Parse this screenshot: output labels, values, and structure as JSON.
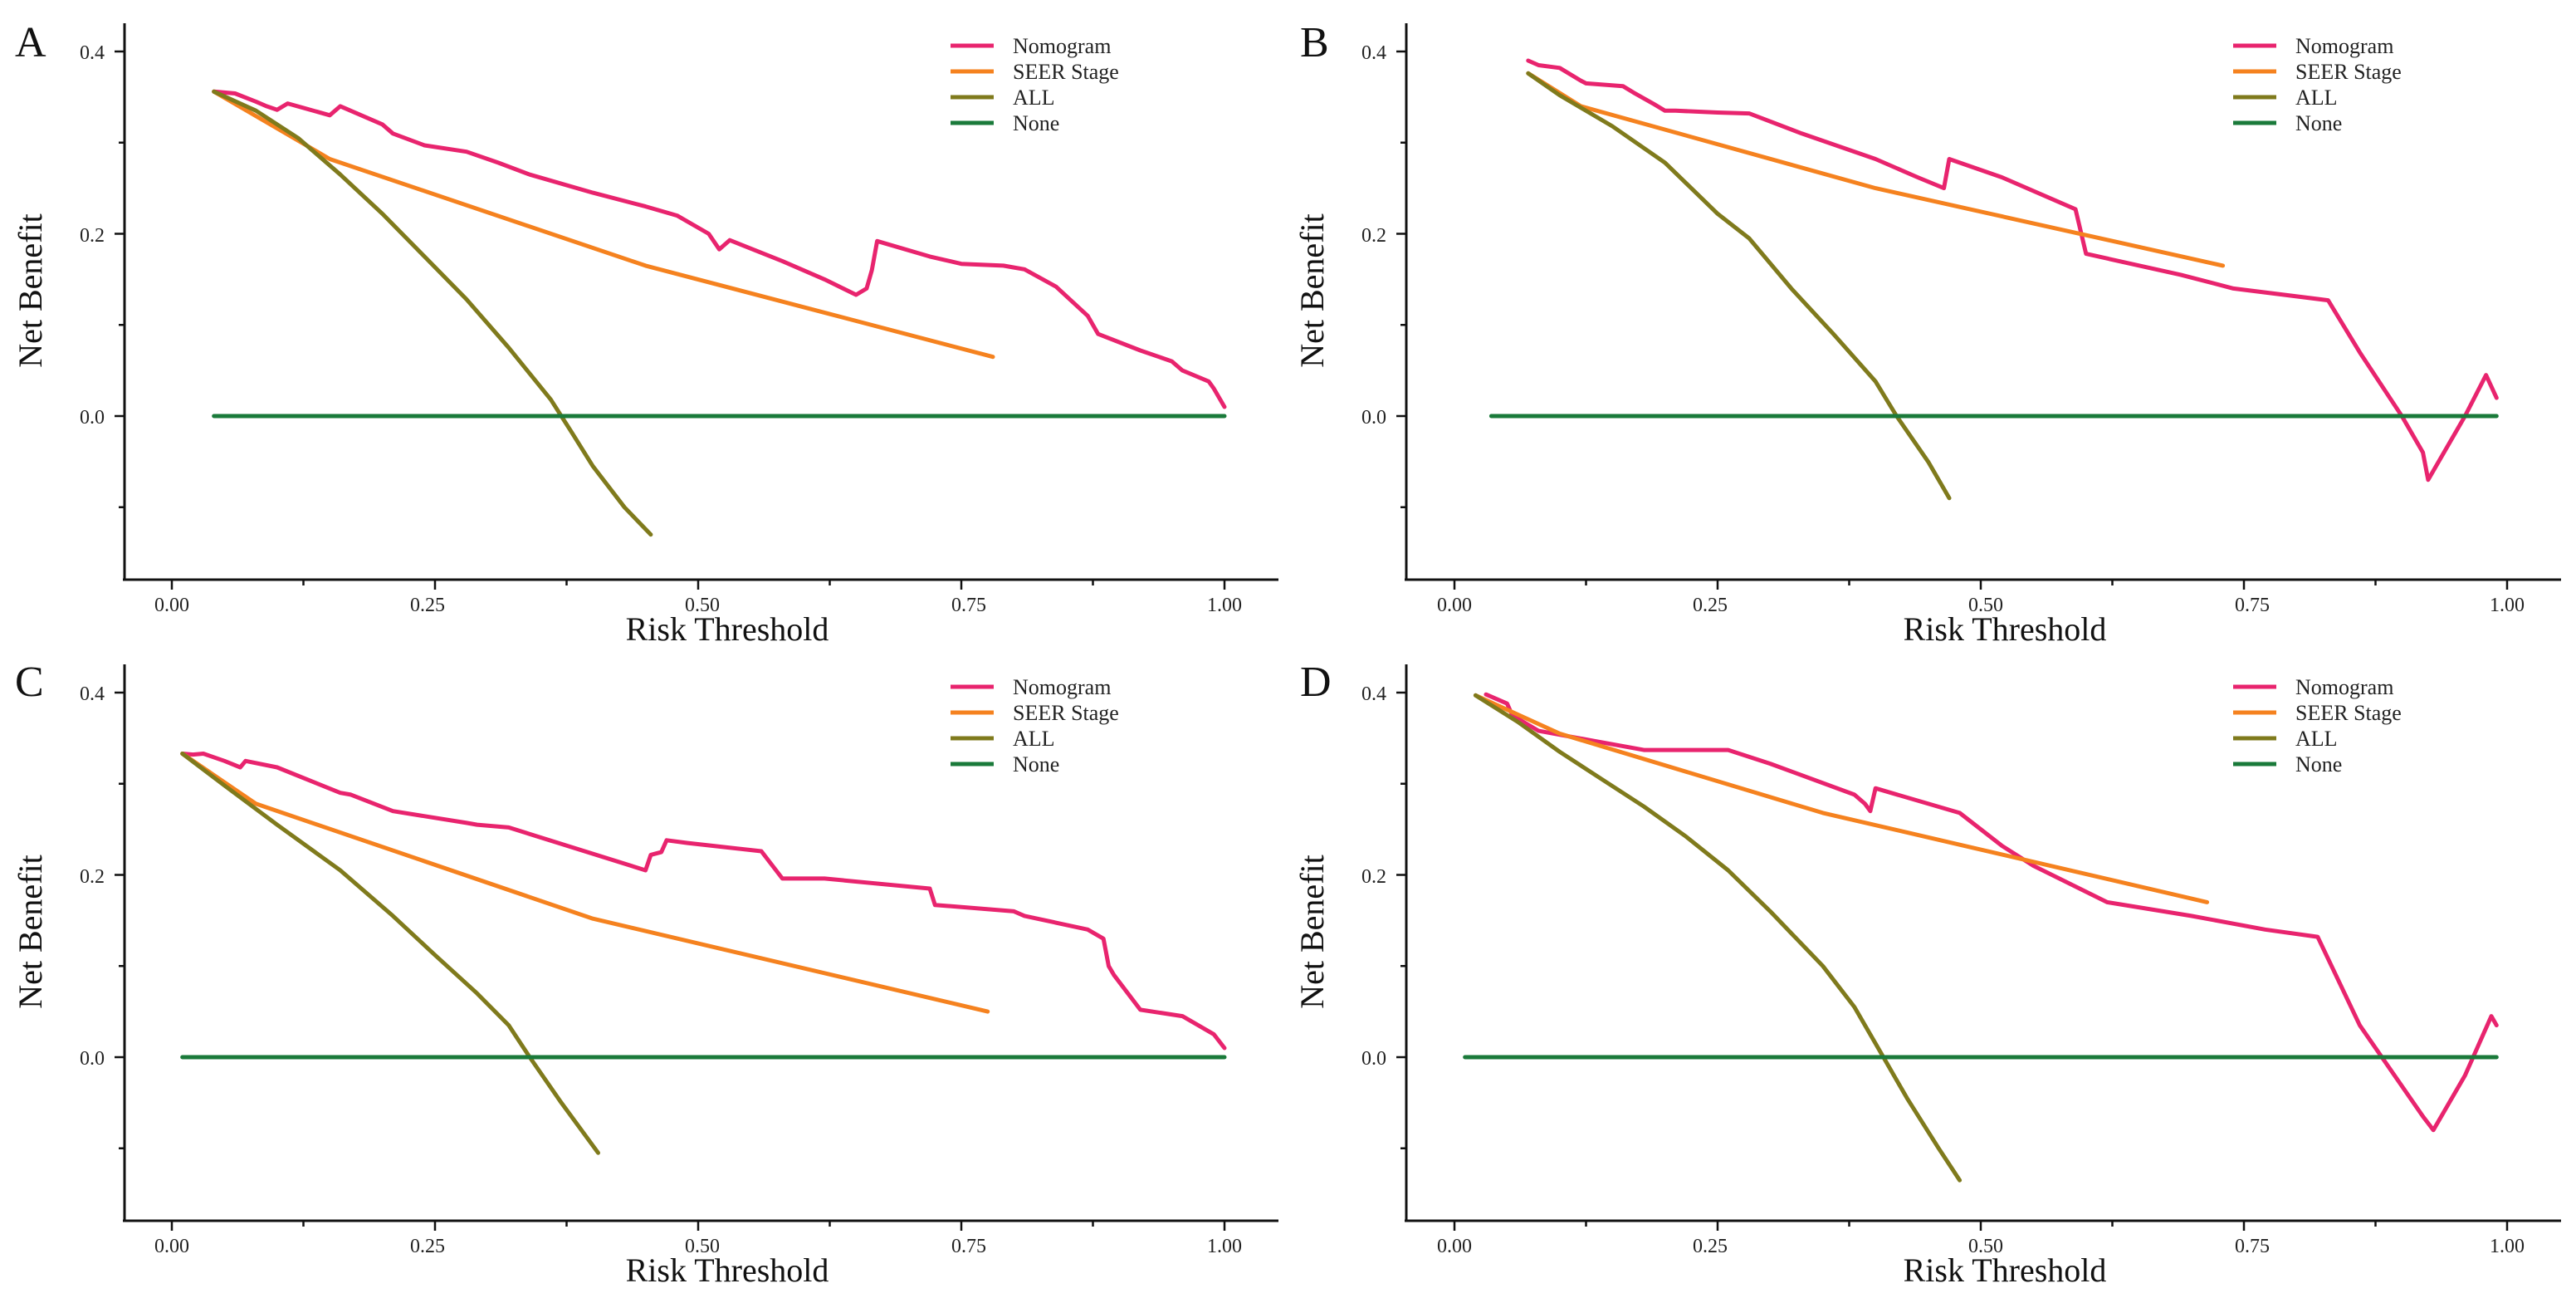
{
  "chart_data": [
    {
      "panel": "A",
      "type": "line",
      "xlabel": "Risk Threshold",
      "ylabel": "Net Benefit",
      "xlim": [
        -0.09,
        1.05
      ],
      "ylim": [
        -0.18,
        0.43
      ],
      "xticks": [
        "0.00",
        "0.25",
        "0.50",
        "0.75",
        "1.00"
      ],
      "yticks": [
        "0.0",
        "0.2",
        "0.4"
      ],
      "legend": [
        "Nomogram",
        "SEER Stage",
        "ALL",
        "None"
      ],
      "series": [
        {
          "name": "Nomogram",
          "color": "#e8246e",
          "x": [
            0.04,
            0.06,
            0.08,
            0.09,
            0.1,
            0.11,
            0.15,
            0.16,
            0.2,
            0.21,
            0.24,
            0.28,
            0.31,
            0.34,
            0.4,
            0.45,
            0.48,
            0.51,
            0.52,
            0.53,
            0.58,
            0.62,
            0.65,
            0.66,
            0.665,
            0.67,
            0.72,
            0.75,
            0.79,
            0.8,
            0.81,
            0.84,
            0.87,
            0.88,
            0.92,
            0.95,
            0.96,
            0.985,
            0.99,
            1.0
          ],
          "y": [
            0.356,
            0.354,
            0.345,
            0.34,
            0.336,
            0.343,
            0.33,
            0.34,
            0.32,
            0.31,
            0.297,
            0.29,
            0.278,
            0.265,
            0.245,
            0.23,
            0.22,
            0.2,
            0.183,
            0.193,
            0.17,
            0.15,
            0.133,
            0.14,
            0.16,
            0.192,
            0.175,
            0.167,
            0.165,
            0.163,
            0.161,
            0.142,
            0.11,
            0.09,
            0.072,
            0.06,
            0.05,
            0.038,
            0.03,
            0.01
          ]
        },
        {
          "name": "SEER Stage",
          "color": "#f5821f",
          "x": [
            0.04,
            0.15,
            0.45,
            0.78
          ],
          "y": [
            0.356,
            0.282,
            0.165,
            0.065
          ]
        },
        {
          "name": "ALL",
          "color": "#7f7a1c",
          "x": [
            0.04,
            0.08,
            0.12,
            0.16,
            0.2,
            0.24,
            0.28,
            0.32,
            0.36,
            0.38,
            0.4,
            0.43,
            0.455
          ],
          "y": [
            0.356,
            0.335,
            0.305,
            0.265,
            0.222,
            0.175,
            0.128,
            0.075,
            0.018,
            -0.018,
            -0.055,
            -0.1,
            -0.13
          ]
        },
        {
          "name": "None",
          "color": "#1a7a3a",
          "x": [
            0.04,
            1.0
          ],
          "y": [
            0.0,
            0.0
          ]
        }
      ]
    },
    {
      "panel": "B",
      "type": "line",
      "xlabel": "Risk Threshold",
      "ylabel": "Net Benefit",
      "xlim": [
        -0.05,
        1.05
      ],
      "ylim": [
        -0.18,
        0.43
      ],
      "xticks": [
        "0.00",
        "0.25",
        "0.50",
        "0.75",
        "1.00"
      ],
      "yticks": [
        "0.0",
        "0.2",
        "0.4"
      ],
      "legend": [
        "Nomogram",
        "SEER Stage",
        "ALL",
        "None"
      ],
      "series": [
        {
          "name": "Nomogram",
          "color": "#e8246e",
          "x": [
            0.07,
            0.08,
            0.1,
            0.12,
            0.125,
            0.16,
            0.17,
            0.19,
            0.2,
            0.21,
            0.25,
            0.28,
            0.33,
            0.4,
            0.44,
            0.465,
            0.47,
            0.52,
            0.59,
            0.6,
            0.69,
            0.74,
            0.83,
            0.86,
            0.9,
            0.92,
            0.925,
            0.96,
            0.98,
            0.99
          ],
          "y": [
            0.39,
            0.385,
            0.382,
            0.368,
            0.365,
            0.362,
            0.355,
            0.342,
            0.335,
            0.335,
            0.333,
            0.332,
            0.31,
            0.282,
            0.262,
            0.25,
            0.282,
            0.262,
            0.227,
            0.178,
            0.155,
            0.14,
            0.127,
            0.07,
            0.0,
            -0.04,
            -0.07,
            0.0,
            0.045,
            0.02
          ]
        },
        {
          "name": "SEER Stage",
          "color": "#f5821f",
          "x": [
            0.07,
            0.12,
            0.4,
            0.73
          ],
          "y": [
            0.376,
            0.34,
            0.25,
            0.165
          ]
        },
        {
          "name": "ALL",
          "color": "#7f7a1c",
          "x": [
            0.07,
            0.1,
            0.15,
            0.2,
            0.25,
            0.28,
            0.32,
            0.36,
            0.4,
            0.42,
            0.45,
            0.47
          ],
          "y": [
            0.376,
            0.352,
            0.318,
            0.278,
            0.222,
            0.195,
            0.14,
            0.09,
            0.038,
            0.0,
            -0.05,
            -0.09
          ]
        },
        {
          "name": "None",
          "color": "#1a7a3a",
          "x": [
            0.035,
            0.99
          ],
          "y": [
            0.0,
            0.0
          ]
        }
      ]
    },
    {
      "panel": "C",
      "type": "line",
      "xlabel": "Risk Threshold",
      "ylabel": "Net Benefit",
      "xlim": [
        -0.06,
        1.05
      ],
      "ylim": [
        -0.18,
        0.43
      ],
      "xticks": [
        "0.00",
        "0.25",
        "0.50",
        "0.75",
        "1.00"
      ],
      "yticks": [
        "0.0",
        "0.2",
        "0.4"
      ],
      "legend": [
        "Nomogram",
        "SEER Stage",
        "ALL",
        "None"
      ],
      "series": [
        {
          "name": "Nomogram",
          "color": "#e8246e",
          "x": [
            0.01,
            0.02,
            0.03,
            0.05,
            0.065,
            0.07,
            0.1,
            0.16,
            0.17,
            0.21,
            0.28,
            0.29,
            0.32,
            0.45,
            0.455,
            0.465,
            0.47,
            0.49,
            0.56,
            0.58,
            0.62,
            0.72,
            0.725,
            0.8,
            0.81,
            0.87,
            0.885,
            0.89,
            0.895,
            0.92,
            0.96,
            0.99,
            1.0
          ],
          "y": [
            0.333,
            0.332,
            0.333,
            0.325,
            0.318,
            0.325,
            0.318,
            0.29,
            0.288,
            0.27,
            0.257,
            0.255,
            0.252,
            0.205,
            0.222,
            0.225,
            0.238,
            0.235,
            0.226,
            0.196,
            0.196,
            0.185,
            0.167,
            0.16,
            0.155,
            0.14,
            0.13,
            0.1,
            0.09,
            0.052,
            0.045,
            0.025,
            0.01
          ]
        },
        {
          "name": "SEER Stage",
          "color": "#f5821f",
          "x": [
            0.01,
            0.08,
            0.4,
            0.775
          ],
          "y": [
            0.333,
            0.278,
            0.152,
            0.05
          ]
        },
        {
          "name": "ALL",
          "color": "#7f7a1c",
          "x": [
            0.01,
            0.05,
            0.1,
            0.16,
            0.21,
            0.25,
            0.29,
            0.32,
            0.34,
            0.37,
            0.405
          ],
          "y": [
            0.333,
            0.298,
            0.255,
            0.205,
            0.155,
            0.112,
            0.07,
            0.035,
            0.0,
            -0.05,
            -0.105
          ]
        },
        {
          "name": "None",
          "color": "#1a7a3a",
          "x": [
            0.01,
            1.0
          ],
          "y": [
            0.0,
            0.0
          ]
        }
      ]
    },
    {
      "panel": "D",
      "type": "line",
      "xlabel": "Risk Threshold",
      "ylabel": "Net Benefit",
      "xlim": [
        -0.05,
        1.05
      ],
      "ylim": [
        -0.18,
        0.43
      ],
      "xticks": [
        "0.00",
        "0.25",
        "0.50",
        "0.75",
        "1.00"
      ],
      "yticks": [
        "0.0",
        "0.2",
        "0.4"
      ],
      "legend": [
        "Nomogram",
        "SEER Stage",
        "ALL",
        "None"
      ],
      "series": [
        {
          "name": "Nomogram",
          "color": "#e8246e",
          "x": [
            0.03,
            0.05,
            0.055,
            0.08,
            0.18,
            0.26,
            0.3,
            0.38,
            0.39,
            0.395,
            0.4,
            0.48,
            0.52,
            0.55,
            0.62,
            0.7,
            0.77,
            0.82,
            0.86,
            0.92,
            0.93,
            0.96,
            0.985,
            0.99
          ],
          "y": [
            0.398,
            0.388,
            0.375,
            0.358,
            0.337,
            0.337,
            0.322,
            0.288,
            0.278,
            0.27,
            0.295,
            0.268,
            0.232,
            0.21,
            0.17,
            0.155,
            0.14,
            0.132,
            0.035,
            -0.065,
            -0.08,
            -0.02,
            0.045,
            0.035
          ]
        },
        {
          "name": "SEER Stage",
          "color": "#f5821f",
          "x": [
            0.02,
            0.1,
            0.35,
            0.715
          ],
          "y": [
            0.397,
            0.355,
            0.268,
            0.17
          ]
        },
        {
          "name": "ALL",
          "color": "#7f7a1c",
          "x": [
            0.02,
            0.06,
            0.1,
            0.14,
            0.18,
            0.22,
            0.26,
            0.3,
            0.35,
            0.38,
            0.4,
            0.43,
            0.46,
            0.48
          ],
          "y": [
            0.397,
            0.368,
            0.335,
            0.305,
            0.275,
            0.242,
            0.205,
            0.16,
            0.1,
            0.055,
            0.015,
            -0.045,
            -0.1,
            -0.135
          ]
        },
        {
          "name": "None",
          "color": "#1a7a3a",
          "x": [
            0.01,
            0.99
          ],
          "y": [
            0.0,
            0.0
          ]
        }
      ]
    }
  ]
}
